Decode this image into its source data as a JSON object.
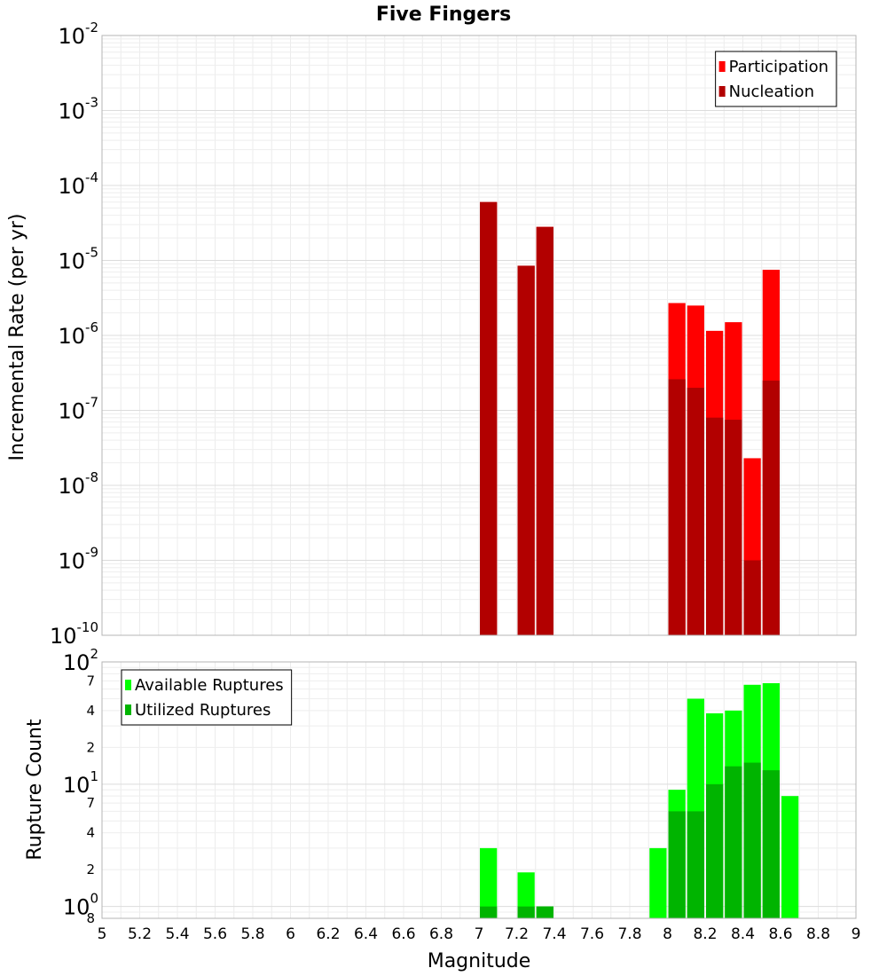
{
  "chart_data": [
    {
      "type": "bar",
      "title": "Five Fingers",
      "xlabel": "",
      "ylabel": "Incremental Rate (per yr)",
      "yscale": "log",
      "xlim": [
        5,
        9
      ],
      "ylim": [
        1e-10,
        0.01
      ],
      "bin_width": 0.1,
      "y_major_ticks": [
        {
          "base": "10",
          "exp": "-10",
          "value": 1e-10
        },
        {
          "base": "10",
          "exp": "-9",
          "value": 1e-09
        },
        {
          "base": "10",
          "exp": "-8",
          "value": 1e-08
        },
        {
          "base": "10",
          "exp": "-7",
          "value": 1e-07
        },
        {
          "base": "10",
          "exp": "-6",
          "value": 1e-06
        },
        {
          "base": "10",
          "exp": "-5",
          "value": 1e-05
        },
        {
          "base": "10",
          "exp": "-4",
          "value": 0.0001
        },
        {
          "base": "10",
          "exp": "-3",
          "value": 0.001
        },
        {
          "base": "10",
          "exp": "-2",
          "value": 0.01
        }
      ],
      "legend": {
        "position": "top-right"
      },
      "series": [
        {
          "name": "Participation",
          "color": "#ff0000",
          "x": [
            7.05,
            7.25,
            7.35,
            8.05,
            8.15,
            8.25,
            8.35,
            8.45,
            8.55
          ],
          "values": [
            6e-05,
            8.5e-06,
            2.8e-05,
            2.7e-06,
            2.5e-06,
            1.15e-06,
            1.5e-06,
            2.3e-08,
            7.5e-06
          ]
        },
        {
          "name": "Nucleation",
          "color": "#b20000",
          "x": [
            7.05,
            7.25,
            7.35,
            8.05,
            8.15,
            8.25,
            8.35,
            8.45,
            8.55
          ],
          "values": [
            6e-05,
            8.5e-06,
            2.8e-05,
            2.6e-07,
            2e-07,
            8e-08,
            7.5e-08,
            1e-09,
            2.5e-07
          ]
        }
      ]
    },
    {
      "type": "bar",
      "title": "",
      "xlabel": "Magnitude",
      "ylabel": "Rupture Count",
      "yscale": "log",
      "xlim": [
        5,
        9
      ],
      "ylim": [
        0.8,
        100
      ],
      "bin_width": 0.1,
      "x_ticks": [
        "5",
        "5.2",
        "5.4",
        "5.6",
        "5.8",
        "6",
        "6.2",
        "6.4",
        "6.6",
        "6.8",
        "7",
        "7.2",
        "7.4",
        "7.6",
        "7.8",
        "8",
        "8.2",
        "8.4",
        "8.6",
        "8.8",
        "9"
      ],
      "y_major_ticks": [
        {
          "base": "10",
          "exp": "0",
          "value": 1
        },
        {
          "base": "10",
          "exp": "1",
          "value": 10
        },
        {
          "base": "10",
          "exp": "2",
          "value": 100
        }
      ],
      "y_minor_ticks": [
        {
          "label": "8",
          "value": 0.8
        },
        {
          "label": "2",
          "value": 2
        },
        {
          "label": "4",
          "value": 4
        },
        {
          "label": "7",
          "value": 7
        },
        {
          "label": "2",
          "value": 20
        },
        {
          "label": "4",
          "value": 40
        },
        {
          "label": "7",
          "value": 70
        }
      ],
      "legend": {
        "position": "top-left"
      },
      "series": [
        {
          "name": "Available Ruptures",
          "color": "#00ff00",
          "x": [
            7.05,
            7.25,
            7.35,
            7.95,
            8.05,
            8.15,
            8.25,
            8.35,
            8.45,
            8.55,
            8.65
          ],
          "values": [
            3,
            1.9,
            1,
            3,
            9,
            50,
            38,
            40,
            65,
            67,
            8
          ]
        },
        {
          "name": "Utilized Ruptures",
          "color": "#00b400",
          "x": [
            7.05,
            7.25,
            7.35,
            8.05,
            8.15,
            8.25,
            8.35,
            8.45,
            8.55
          ],
          "values": [
            1,
            1,
            1,
            6,
            6,
            10,
            14,
            15,
            13
          ]
        }
      ]
    }
  ]
}
